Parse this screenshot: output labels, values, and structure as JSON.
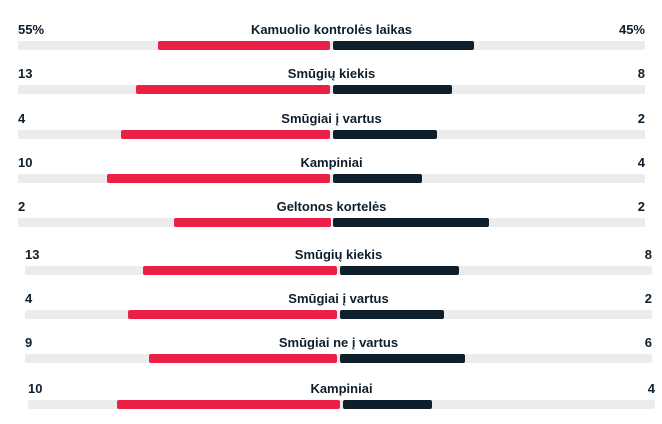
{
  "colors": {
    "home": "#ec2047",
    "away": "#0f1e2b",
    "track": "#ececec",
    "text": "#0f1e2b"
  },
  "stats": [
    {
      "label": "Kamuolio kontrolės laikas",
      "home": "55%",
      "away": "45%",
      "home_share": 0.55,
      "away_share": 0.45
    },
    {
      "label": "Smūgių kiekis",
      "home": "13",
      "away": "8",
      "home_share": 0.619,
      "away_share": 0.381
    },
    {
      "label": "Smūgiai į vartus",
      "home": "4",
      "away": "2",
      "home_share": 0.667,
      "away_share": 0.333
    },
    {
      "label": "Kampiniai",
      "home": "10",
      "away": "4",
      "home_share": 0.714,
      "away_share": 0.286
    },
    {
      "label": "Geltonos kortelės",
      "home": "2",
      "away": "2",
      "home_share": 0.5,
      "away_share": 0.5
    },
    {
      "label": "Smūgių kiekis",
      "home": "13",
      "away": "8",
      "home_share": 0.619,
      "away_share": 0.381
    },
    {
      "label": "Smūgiai į vartus",
      "home": "4",
      "away": "2",
      "home_share": 0.667,
      "away_share": 0.333
    },
    {
      "label": "Smūgiai ne į vartus",
      "home": "9",
      "away": "6",
      "home_share": 0.6,
      "away_share": 0.4
    },
    {
      "label": "Kampiniai",
      "home": "10",
      "away": "4",
      "home_share": 0.714,
      "away_share": 0.286
    }
  ]
}
